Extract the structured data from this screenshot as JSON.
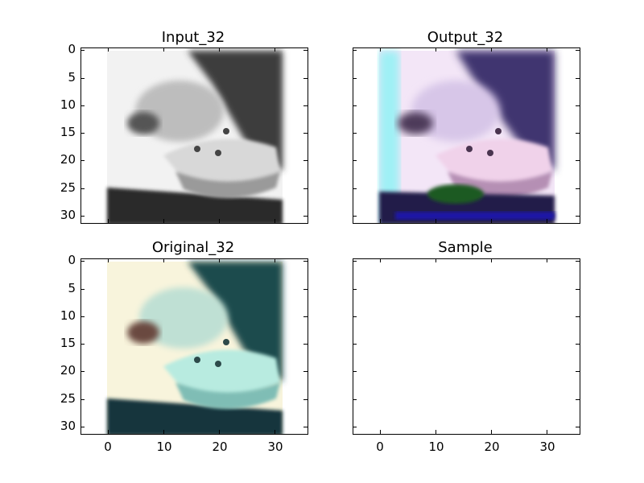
{
  "panels": {
    "input": {
      "title": "Input_32"
    },
    "output": {
      "title": "Output_32"
    },
    "original": {
      "title": "Original_32"
    },
    "sample": {
      "title": "Sample"
    }
  },
  "y_ticks": [
    "0",
    "5",
    "10",
    "15",
    "20",
    "25",
    "30"
  ],
  "x_ticks": [
    "0",
    "10",
    "20",
    "30"
  ],
  "colors": {
    "frame": "#000000",
    "background": "#ffffff"
  }
}
